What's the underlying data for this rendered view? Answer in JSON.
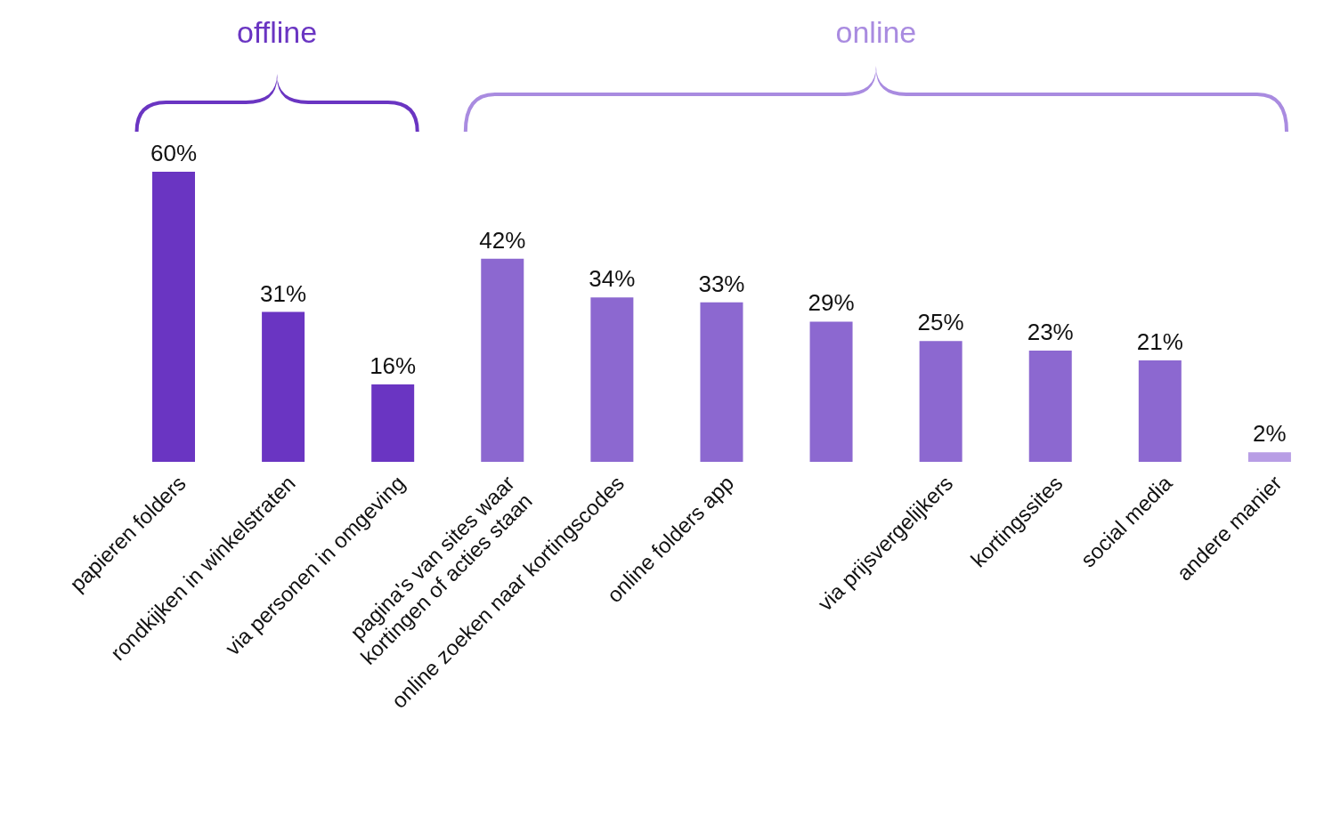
{
  "chart_data": {
    "type": "bar",
    "categories": [
      "papieren folders",
      "rondkijken in winkelstraten",
      "via personen in omgeving",
      "pagina's van sites waar kortingen of acties staan",
      "online zoeken naar kortingscodes",
      "online folders app",
      null,
      "via prijsvergelijkers",
      "kortingssites",
      "social media",
      "andere manier"
    ],
    "values": [
      60,
      31,
      16,
      42,
      34,
      33,
      29,
      25,
      23,
      21,
      2
    ],
    "value_labels": [
      "60%",
      "31%",
      "16%",
      "42%",
      "34%",
      "33%",
      "29%",
      "25%",
      "23%",
      "21%",
      "2%"
    ],
    "colors": [
      "#6a35c2",
      "#6a35c2",
      "#6a35c2",
      "#8c68d0",
      "#8c68d0",
      "#8c68d0",
      "#8c68d0",
      "#8c68d0",
      "#8c68d0",
      "#8c68d0",
      "#b89ee5"
    ],
    "annotations": [
      "offline",
      "online"
    ]
  }
}
